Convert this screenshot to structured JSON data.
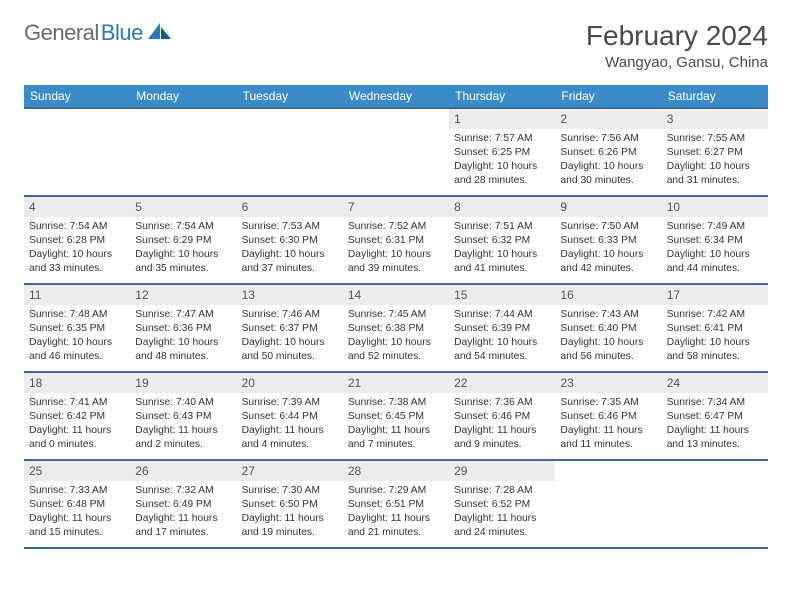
{
  "logo": {
    "text_gray": "General",
    "text_blue": "Blue"
  },
  "title": "February 2024",
  "location": "Wangyao, Gansu, China",
  "colors": {
    "header_bg": "#3b8bc9",
    "header_border": "#3b6a94",
    "daynum_bg": "#ececec",
    "logo_gray": "#6a6a6a",
    "logo_blue": "#2a7ab8",
    "text": "#333333"
  },
  "day_headers": [
    "Sunday",
    "Monday",
    "Tuesday",
    "Wednesday",
    "Thursday",
    "Friday",
    "Saturday"
  ],
  "weeks": [
    [
      null,
      null,
      null,
      null,
      {
        "n": "1",
        "sr": "Sunrise: 7:57 AM",
        "ss": "Sunset: 6:25 PM",
        "dl": "Daylight: 10 hours and 28 minutes."
      },
      {
        "n": "2",
        "sr": "Sunrise: 7:56 AM",
        "ss": "Sunset: 6:26 PM",
        "dl": "Daylight: 10 hours and 30 minutes."
      },
      {
        "n": "3",
        "sr": "Sunrise: 7:55 AM",
        "ss": "Sunset: 6:27 PM",
        "dl": "Daylight: 10 hours and 31 minutes."
      }
    ],
    [
      {
        "n": "4",
        "sr": "Sunrise: 7:54 AM",
        "ss": "Sunset: 6:28 PM",
        "dl": "Daylight: 10 hours and 33 minutes."
      },
      {
        "n": "5",
        "sr": "Sunrise: 7:54 AM",
        "ss": "Sunset: 6:29 PM",
        "dl": "Daylight: 10 hours and 35 minutes."
      },
      {
        "n": "6",
        "sr": "Sunrise: 7:53 AM",
        "ss": "Sunset: 6:30 PM",
        "dl": "Daylight: 10 hours and 37 minutes."
      },
      {
        "n": "7",
        "sr": "Sunrise: 7:52 AM",
        "ss": "Sunset: 6:31 PM",
        "dl": "Daylight: 10 hours and 39 minutes."
      },
      {
        "n": "8",
        "sr": "Sunrise: 7:51 AM",
        "ss": "Sunset: 6:32 PM",
        "dl": "Daylight: 10 hours and 41 minutes."
      },
      {
        "n": "9",
        "sr": "Sunrise: 7:50 AM",
        "ss": "Sunset: 6:33 PM",
        "dl": "Daylight: 10 hours and 42 minutes."
      },
      {
        "n": "10",
        "sr": "Sunrise: 7:49 AM",
        "ss": "Sunset: 6:34 PM",
        "dl": "Daylight: 10 hours and 44 minutes."
      }
    ],
    [
      {
        "n": "11",
        "sr": "Sunrise: 7:48 AM",
        "ss": "Sunset: 6:35 PM",
        "dl": "Daylight: 10 hours and 46 minutes."
      },
      {
        "n": "12",
        "sr": "Sunrise: 7:47 AM",
        "ss": "Sunset: 6:36 PM",
        "dl": "Daylight: 10 hours and 48 minutes."
      },
      {
        "n": "13",
        "sr": "Sunrise: 7:46 AM",
        "ss": "Sunset: 6:37 PM",
        "dl": "Daylight: 10 hours and 50 minutes."
      },
      {
        "n": "14",
        "sr": "Sunrise: 7:45 AM",
        "ss": "Sunset: 6:38 PM",
        "dl": "Daylight: 10 hours and 52 minutes."
      },
      {
        "n": "15",
        "sr": "Sunrise: 7:44 AM",
        "ss": "Sunset: 6:39 PM",
        "dl": "Daylight: 10 hours and 54 minutes."
      },
      {
        "n": "16",
        "sr": "Sunrise: 7:43 AM",
        "ss": "Sunset: 6:40 PM",
        "dl": "Daylight: 10 hours and 56 minutes."
      },
      {
        "n": "17",
        "sr": "Sunrise: 7:42 AM",
        "ss": "Sunset: 6:41 PM",
        "dl": "Daylight: 10 hours and 58 minutes."
      }
    ],
    [
      {
        "n": "18",
        "sr": "Sunrise: 7:41 AM",
        "ss": "Sunset: 6:42 PM",
        "dl": "Daylight: 11 hours and 0 minutes."
      },
      {
        "n": "19",
        "sr": "Sunrise: 7:40 AM",
        "ss": "Sunset: 6:43 PM",
        "dl": "Daylight: 11 hours and 2 minutes."
      },
      {
        "n": "20",
        "sr": "Sunrise: 7:39 AM",
        "ss": "Sunset: 6:44 PM",
        "dl": "Daylight: 11 hours and 4 minutes."
      },
      {
        "n": "21",
        "sr": "Sunrise: 7:38 AM",
        "ss": "Sunset: 6:45 PM",
        "dl": "Daylight: 11 hours and 7 minutes."
      },
      {
        "n": "22",
        "sr": "Sunrise: 7:36 AM",
        "ss": "Sunset: 6:46 PM",
        "dl": "Daylight: 11 hours and 9 minutes."
      },
      {
        "n": "23",
        "sr": "Sunrise: 7:35 AM",
        "ss": "Sunset: 6:46 PM",
        "dl": "Daylight: 11 hours and 11 minutes."
      },
      {
        "n": "24",
        "sr": "Sunrise: 7:34 AM",
        "ss": "Sunset: 6:47 PM",
        "dl": "Daylight: 11 hours and 13 minutes."
      }
    ],
    [
      {
        "n": "25",
        "sr": "Sunrise: 7:33 AM",
        "ss": "Sunset: 6:48 PM",
        "dl": "Daylight: 11 hours and 15 minutes."
      },
      {
        "n": "26",
        "sr": "Sunrise: 7:32 AM",
        "ss": "Sunset: 6:49 PM",
        "dl": "Daylight: 11 hours and 17 minutes."
      },
      {
        "n": "27",
        "sr": "Sunrise: 7:30 AM",
        "ss": "Sunset: 6:50 PM",
        "dl": "Daylight: 11 hours and 19 minutes."
      },
      {
        "n": "28",
        "sr": "Sunrise: 7:29 AM",
        "ss": "Sunset: 6:51 PM",
        "dl": "Daylight: 11 hours and 21 minutes."
      },
      {
        "n": "29",
        "sr": "Sunrise: 7:28 AM",
        "ss": "Sunset: 6:52 PM",
        "dl": "Daylight: 11 hours and 24 minutes."
      },
      null,
      null
    ]
  ]
}
